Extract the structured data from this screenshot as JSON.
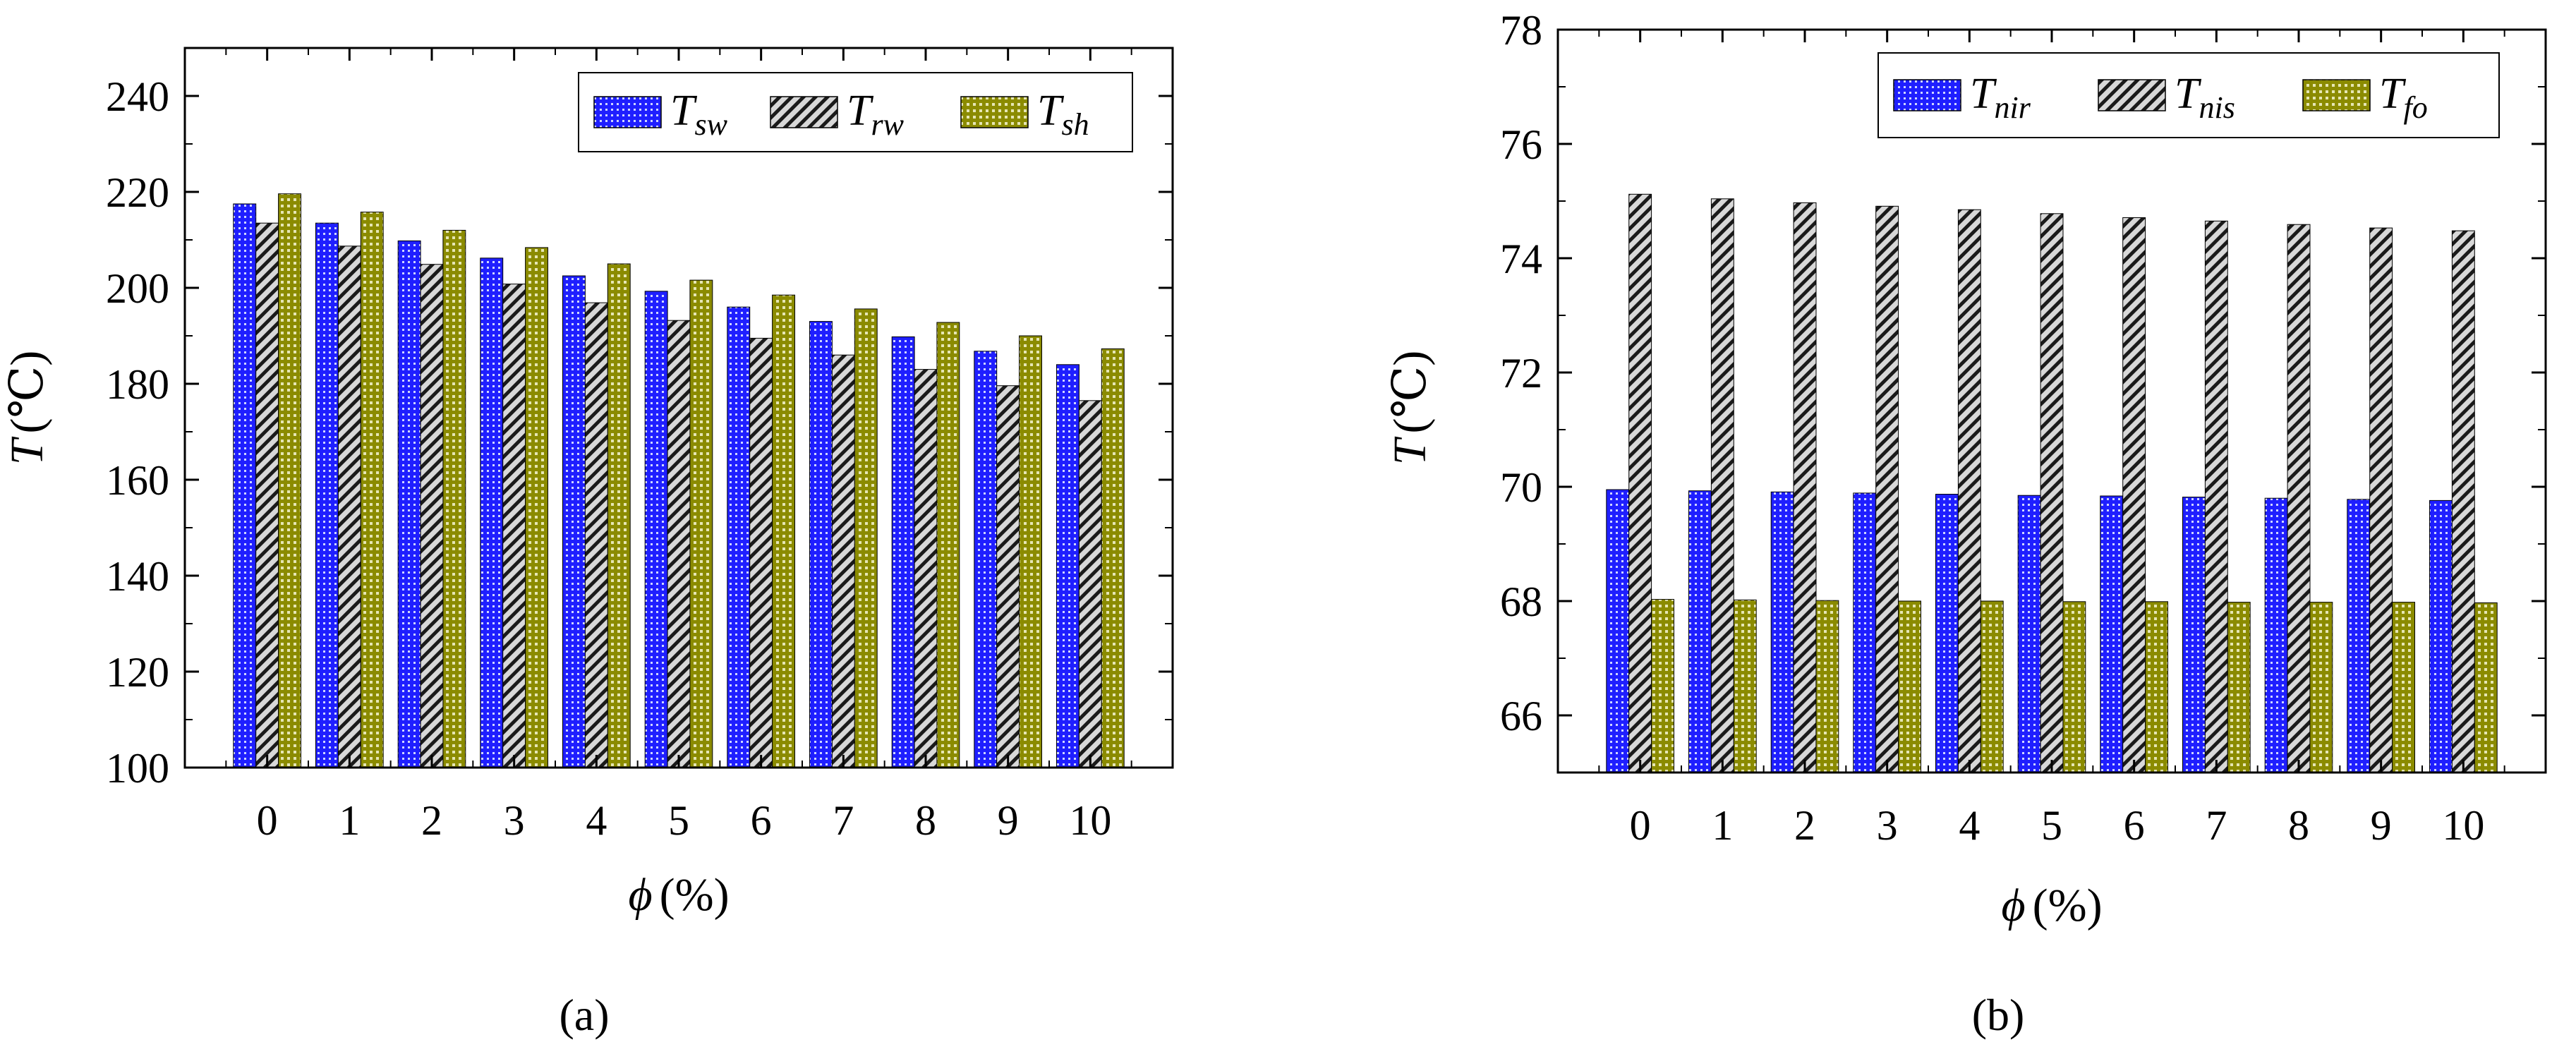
{
  "charts": [
    {
      "caption": "(a)",
      "title": "",
      "xlabel_symbol": "ϕ",
      "xlabel_unit": "(%)",
      "ylabel_symbol": "T",
      "ylabel_unit": "(℃)"
    },
    {
      "caption": "(b)",
      "title": "",
      "xlabel_symbol": "ϕ",
      "xlabel_unit": "(%)",
      "ylabel_symbol": "T",
      "ylabel_unit": "(℃)"
    }
  ],
  "chart_data": [
    {
      "type": "bar",
      "title": "",
      "xlabel": "ϕ (%)",
      "ylabel": "T (℃)",
      "categories": [
        "0",
        "1",
        "2",
        "3",
        "4",
        "5",
        "6",
        "7",
        "8",
        "9",
        "10"
      ],
      "ylim": [
        100,
        250
      ],
      "yticks": [
        100,
        120,
        140,
        160,
        180,
        200,
        220,
        240
      ],
      "legend_position": "top-right",
      "series": [
        {
          "name": "T",
          "sub": "sw",
          "color": "#1f1fff",
          "pattern": "dots",
          "values": [
            217.5,
            213.5,
            209.8,
            206.2,
            202.5,
            199.3,
            196.0,
            193.0,
            189.8,
            186.8,
            184.0
          ]
        },
        {
          "name": "T",
          "sub": "rw",
          "color": "#555555",
          "pattern": "hatch",
          "values": [
            213.5,
            208.7,
            204.9,
            200.8,
            196.9,
            193.2,
            189.5,
            186.0,
            183.0,
            179.6,
            176.5
          ]
        },
        {
          "name": "T",
          "sub": "sh",
          "color": "#8b8b00",
          "pattern": "grid",
          "values": [
            219.6,
            215.8,
            212.0,
            208.4,
            205.0,
            201.6,
            198.5,
            195.6,
            192.8,
            190.0,
            187.3
          ]
        }
      ]
    },
    {
      "type": "bar",
      "title": "",
      "xlabel": "ϕ (%)",
      "ylabel": "T (℃)",
      "categories": [
        "0",
        "1",
        "2",
        "3",
        "4",
        "5",
        "6",
        "7",
        "8",
        "9",
        "10"
      ],
      "ylim": [
        65,
        78
      ],
      "yticks": [
        66,
        68,
        70,
        72,
        74,
        76,
        78
      ],
      "legend_position": "top-right",
      "series": [
        {
          "name": "T",
          "sub": "nir",
          "color": "#1f1fff",
          "pattern": "dots",
          "values": [
            69.95,
            69.93,
            69.91,
            69.89,
            69.87,
            69.85,
            69.84,
            69.82,
            69.8,
            69.78,
            69.76
          ]
        },
        {
          "name": "T",
          "sub": "nis",
          "color": "#555555",
          "pattern": "hatch",
          "values": [
            75.12,
            75.04,
            74.97,
            74.91,
            74.85,
            74.78,
            74.71,
            74.65,
            74.59,
            74.53,
            74.48
          ]
        },
        {
          "name": "T",
          "sub": "fo",
          "color": "#8b8b00",
          "pattern": "grid",
          "values": [
            68.03,
            68.02,
            68.01,
            68.0,
            68.0,
            67.99,
            67.99,
            67.98,
            67.98,
            67.98,
            67.97
          ]
        }
      ]
    }
  ]
}
